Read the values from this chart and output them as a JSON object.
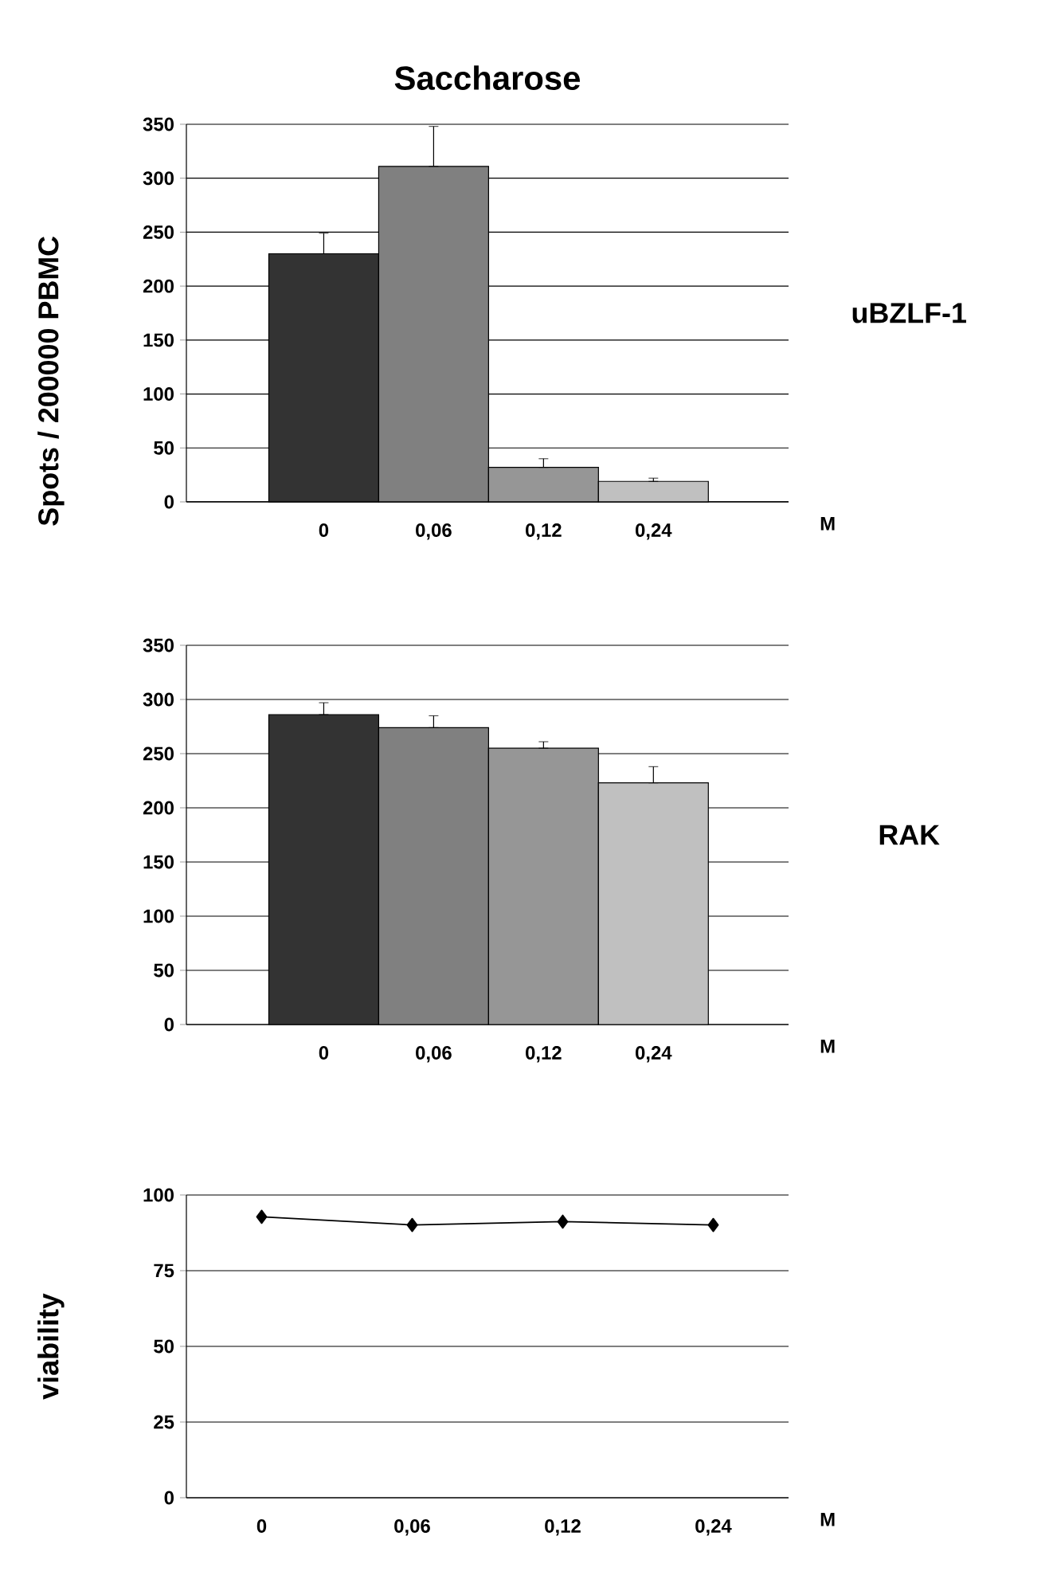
{
  "chart_data": [
    {
      "type": "bar",
      "title": "Saccharose",
      "ylabel": "Spots / 200000 PBMC",
      "xlabel": "M",
      "annotations": [
        "uBZLF-1"
      ],
      "categories": [
        "0",
        "0,06",
        "0,12",
        "0,24"
      ],
      "values": [
        230,
        311,
        32,
        19
      ],
      "colors": [
        "#333333",
        "#808080",
        "#969696",
        "#c0c0c0"
      ],
      "errors": [
        [
          230,
          249
        ],
        [
          311,
          348
        ],
        [
          32,
          40
        ],
        [
          19,
          22
        ]
      ],
      "ylim": [
        0,
        350
      ],
      "yticks": [
        0,
        50,
        100,
        150,
        200,
        250,
        300,
        350
      ],
      "grid": "y"
    },
    {
      "type": "bar",
      "xlabel": "M",
      "annotations": [
        "RAK"
      ],
      "categories": [
        "0",
        "0,06",
        "0,12",
        "0,24"
      ],
      "values": [
        286,
        274,
        255,
        223
      ],
      "colors": [
        "#333333",
        "#808080",
        "#969696",
        "#c0c0c0"
      ],
      "errors": [
        [
          286,
          297
        ],
        [
          274,
          285
        ],
        [
          255,
          261
        ],
        [
          223,
          238
        ]
      ],
      "ylim": [
        0,
        350
      ],
      "yticks": [
        0,
        50,
        100,
        150,
        200,
        250,
        300,
        350
      ],
      "grid": "y"
    },
    {
      "type": "line",
      "ylabel": "viability",
      "xlabel": "M",
      "categories": [
        "0",
        "0,06",
        "0,12",
        "0,24"
      ],
      "series": [
        {
          "color": "#000000",
          "values": [
            92.8,
            90.1,
            91.2,
            90.1
          ]
        }
      ],
      "marker": "diamond",
      "ylim": [
        0,
        100
      ],
      "yticks": [
        0,
        25,
        50,
        75,
        100
      ],
      "grid": "y"
    }
  ]
}
